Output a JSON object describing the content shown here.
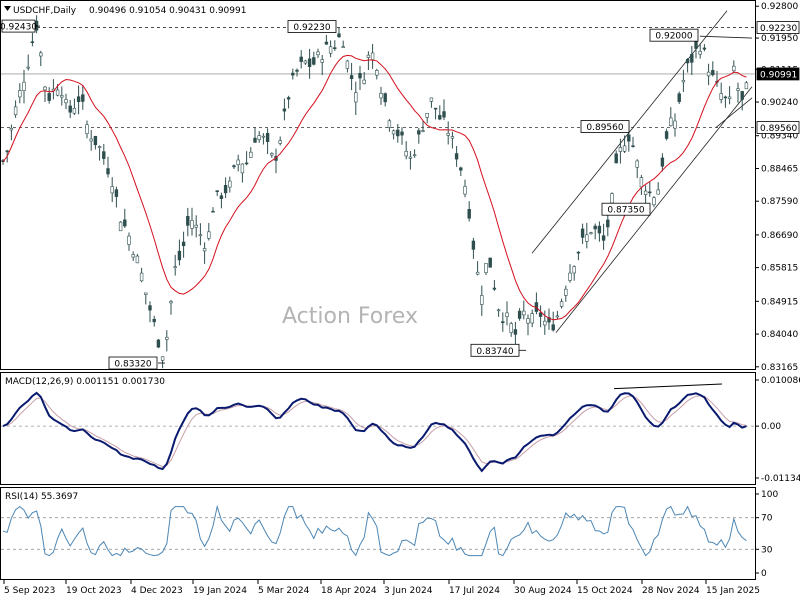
{
  "header": {
    "symbol": "USDCHF,Daily",
    "ohlc": "0.90496 0.91054 0.90431 0.90991"
  },
  "watermark": "Action Forex",
  "colors": {
    "candle": "#2f4f4f",
    "ma": "#d4101e",
    "channel": "#222222",
    "macd_line": "#0a1a6e",
    "macd_signal": "#c8a0a8",
    "rsi": "#4c86b4",
    "levels": "#333333",
    "price_box": "#000000"
  },
  "price_panel": {
    "price_axis_labels": [
      "0.92800",
      "0.91950",
      "0.91115",
      "0.90240",
      "0.89340",
      "0.88465",
      "0.87590",
      "0.86690",
      "0.85815",
      "0.84915",
      "0.84040",
      "0.83165"
    ],
    "level_labels": [
      "0.92230",
      "0.89560"
    ],
    "current_price": "0.90991",
    "annotations": [
      "0.92430",
      "0.92230",
      "0.92000",
      "0.89560",
      "0.87350",
      "0.83740",
      "0.83320"
    ]
  },
  "macd_panel": {
    "title": "MACD(12,26,9) 0.001151 0.001730",
    "axis_labels": [
      "0.010086",
      "0.00",
      "-0.011342"
    ]
  },
  "rsi_panel": {
    "title": "RSI(14) 55.3697",
    "axis_labels": [
      "100",
      "70",
      "30",
      "0"
    ]
  },
  "x_axis_labels": [
    "5 Sep 2023",
    "19 Oct 2023",
    "4 Dec 2023",
    "19 Jan 2024",
    "5 Mar 2024",
    "18 Apr 2024",
    "3 Jun 2024",
    "17 Jul 2024",
    "30 Aug 2024",
    "15 Oct 2024",
    "28 Nov 2024",
    "15 Jan 2025"
  ],
  "chart_data": {
    "type": "candlestick",
    "title": "USDCHF,Daily",
    "x": [
      "5 Sep 2023",
      "19 Oct 2023",
      "4 Dec 2023",
      "19 Jan 2024",
      "5 Mar 2024",
      "18 Apr 2024",
      "3 Jun 2024",
      "17 Jul 2024",
      "30 Aug 2024",
      "15 Oct 2024",
      "28 Nov 2024",
      "15 Jan 2025"
    ],
    "price_approx": [
      0.889,
      0.906,
      0.858,
      0.87,
      0.884,
      0.915,
      0.893,
      0.884,
      0.842,
      0.86,
      0.885,
      0.904
    ],
    "key_points": [
      {
        "label": "0.92430",
        "value": 0.9243
      },
      {
        "label": "0.83320",
        "value": 0.8332
      },
      {
        "label": "0.92230",
        "value": 0.9223
      },
      {
        "label": "0.83740",
        "value": 0.8374
      },
      {
        "label": "0.89560",
        "value": 0.8956
      },
      {
        "label": "0.87350",
        "value": 0.8735
      },
      {
        "label": "0.92000",
        "value": 0.92
      }
    ],
    "horizontal_levels": [
      0.9223,
      0.8956
    ],
    "last": {
      "open": 0.90496,
      "high": 0.91054,
      "low": 0.90431,
      "close": 0.90991
    },
    "ylim": [
      0.8316,
      0.9286
    ],
    "indicators": {
      "macd": {
        "params": "12,26,9",
        "main": 0.001151,
        "signal": 0.00173,
        "ylim": [
          -0.011342,
          0.010086
        ]
      },
      "rsi": {
        "period": 14,
        "value": 55.3697,
        "levels": [
          70,
          30
        ],
        "ylim": [
          0,
          100
        ]
      }
    }
  }
}
